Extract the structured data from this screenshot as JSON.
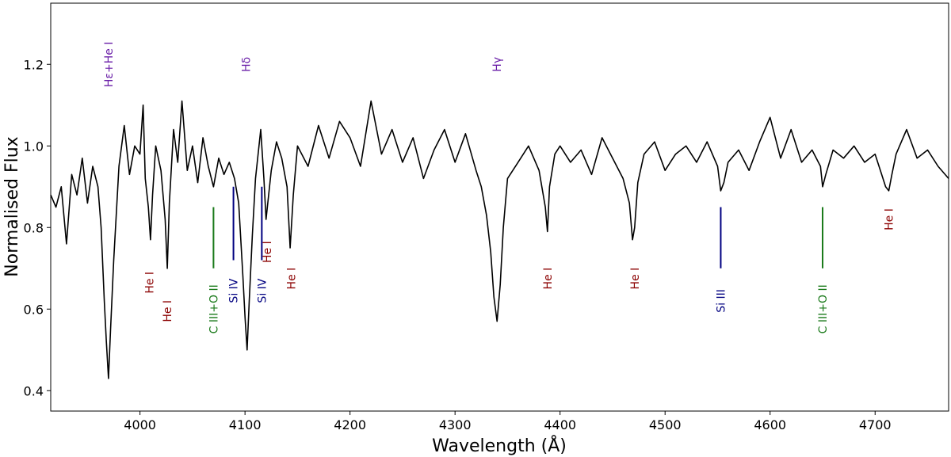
{
  "chart_data": {
    "type": "line",
    "title": "",
    "xlabel": "Wavelength (Å)",
    "ylabel": "Normalised Flux",
    "xlim": [
      3915,
      4770
    ],
    "ylim": [
      0.35,
      1.35
    ],
    "x_ticks": [
      4000,
      4100,
      4200,
      4300,
      4400,
      4500,
      4600,
      4700
    ],
    "y_ticks": [
      0.4,
      0.6,
      0.8,
      1.0,
      1.2
    ],
    "grid": false,
    "series": [
      {
        "name": "",
        "color": "#000000",
        "x": [
          3915,
          3920,
          3925,
          3930,
          3935,
          3940,
          3945,
          3950,
          3955,
          3960,
          3963,
          3966,
          3968,
          3970,
          3972,
          3975,
          3980,
          3985,
          3990,
          3995,
          4000,
          4003,
          4005,
          4008,
          4010,
          4012,
          4015,
          4020,
          4024,
          4026,
          4028,
          4032,
          4036,
          4040,
          4045,
          4050,
          4055,
          4060,
          4065,
          4070,
          4075,
          4080,
          4085,
          4090,
          4094,
          4098,
          4100,
          4102,
          4104,
          4107,
          4110,
          4115,
          4118,
          4120,
          4125,
          4130,
          4135,
          4140,
          4143,
          4146,
          4150,
          4160,
          4170,
          4180,
          4190,
          4200,
          4210,
          4220,
          4230,
          4240,
          4250,
          4260,
          4270,
          4280,
          4290,
          4300,
          4310,
          4320,
          4325,
          4330,
          4334,
          4337,
          4340,
          4343,
          4346,
          4350,
          4360,
          4370,
          4380,
          4386,
          4388,
          4390,
          4395,
          4400,
          4410,
          4420,
          4430,
          4440,
          4450,
          4460,
          4466,
          4469,
          4471,
          4474,
          4480,
          4490,
          4500,
          4510,
          4520,
          4530,
          4540,
          4550,
          4553,
          4556,
          4560,
          4570,
          4580,
          4590,
          4600,
          4610,
          4620,
          4630,
          4640,
          4648,
          4650,
          4653,
          4660,
          4670,
          4680,
          4690,
          4700,
          4705,
          4710,
          4713,
          4716,
          4720,
          4730,
          4740,
          4750,
          4760,
          4770
        ],
        "y": [
          0.88,
          0.85,
          0.9,
          0.76,
          0.93,
          0.88,
          0.97,
          0.86,
          0.95,
          0.9,
          0.8,
          0.62,
          0.52,
          0.43,
          0.55,
          0.72,
          0.95,
          1.05,
          0.93,
          1.0,
          0.98,
          1.1,
          0.92,
          0.85,
          0.77,
          0.88,
          1.0,
          0.94,
          0.82,
          0.7,
          0.86,
          1.04,
          0.96,
          1.11,
          0.94,
          1.0,
          0.91,
          1.02,
          0.95,
          0.9,
          0.97,
          0.93,
          0.96,
          0.92,
          0.86,
          0.68,
          0.58,
          0.5,
          0.62,
          0.78,
          0.92,
          1.04,
          0.92,
          0.82,
          0.94,
          1.01,
          0.97,
          0.9,
          0.75,
          0.88,
          1.0,
          0.95,
          1.05,
          0.97,
          1.06,
          1.02,
          0.95,
          1.11,
          0.98,
          1.04,
          0.96,
          1.02,
          0.92,
          0.99,
          1.04,
          0.96,
          1.03,
          0.94,
          0.9,
          0.83,
          0.74,
          0.63,
          0.57,
          0.66,
          0.8,
          0.92,
          0.96,
          1.0,
          0.94,
          0.85,
          0.79,
          0.9,
          0.98,
          1.0,
          0.96,
          0.99,
          0.93,
          1.02,
          0.97,
          0.92,
          0.86,
          0.77,
          0.8,
          0.91,
          0.98,
          1.01,
          0.94,
          0.98,
          1.0,
          0.96,
          1.01,
          0.95,
          0.89,
          0.91,
          0.96,
          0.99,
          0.94,
          1.01,
          1.07,
          0.97,
          1.04,
          0.96,
          0.99,
          0.95,
          0.9,
          0.93,
          0.99,
          0.97,
          1.0,
          0.96,
          0.98,
          0.94,
          0.9,
          0.89,
          0.93,
          0.98,
          1.04,
          0.97,
          0.99,
          0.95,
          0.92
        ]
      }
    ],
    "line_markers": [
      {
        "label": "Hε+He I",
        "x": 3970,
        "y1": null,
        "y2": null,
        "label_y": 1.2,
        "color": "#6a1fa8"
      },
      {
        "label": "Hδ",
        "x": 4101,
        "y1": null,
        "y2": null,
        "label_y": 1.2,
        "color": "#6a1fa8"
      },
      {
        "label": "Hγ",
        "x": 4340,
        "y1": null,
        "y2": null,
        "label_y": 1.2,
        "color": "#6a1fa8"
      },
      {
        "label": "He I",
        "x": 4009,
        "y1": null,
        "y2": null,
        "label_y": 0.665,
        "color": "#8b0000"
      },
      {
        "label": "He I",
        "x": 4026,
        "y1": null,
        "y2": null,
        "label_y": 0.595,
        "color": "#8b0000"
      },
      {
        "label": "C III+O II",
        "x": 4070,
        "y1": 0.7,
        "y2": 0.85,
        "label_y": 0.6,
        "color": "#1a7a1a"
      },
      {
        "label": "Si IV",
        "x": 4089,
        "y1": 0.72,
        "y2": 0.9,
        "label_y": 0.645,
        "color": "#000080"
      },
      {
        "label": "Si IV",
        "x": 4116,
        "y1": 0.72,
        "y2": 0.9,
        "label_y": 0.645,
        "color": "#000080"
      },
      {
        "label": "He I",
        "x": 4121,
        "y1": null,
        "y2": null,
        "label_y": 0.74,
        "color": "#8b0000"
      },
      {
        "label": "He I",
        "x": 4144,
        "y1": null,
        "y2": null,
        "label_y": 0.675,
        "color": "#8b0000"
      },
      {
        "label": "He I",
        "x": 4388,
        "y1": null,
        "y2": null,
        "label_y": 0.675,
        "color": "#8b0000"
      },
      {
        "label": "He I",
        "x": 4471,
        "y1": null,
        "y2": null,
        "label_y": 0.675,
        "color": "#8b0000"
      },
      {
        "label": "Si III",
        "x": 4553,
        "y1": 0.7,
        "y2": 0.85,
        "label_y": 0.62,
        "color": "#000080"
      },
      {
        "label": "C III+O II",
        "x": 4650,
        "y1": 0.7,
        "y2": 0.85,
        "label_y": 0.6,
        "color": "#1a7a1a"
      },
      {
        "label": "He I",
        "x": 4713,
        "y1": null,
        "y2": null,
        "label_y": 0.82,
        "color": "#8b0000"
      }
    ]
  }
}
